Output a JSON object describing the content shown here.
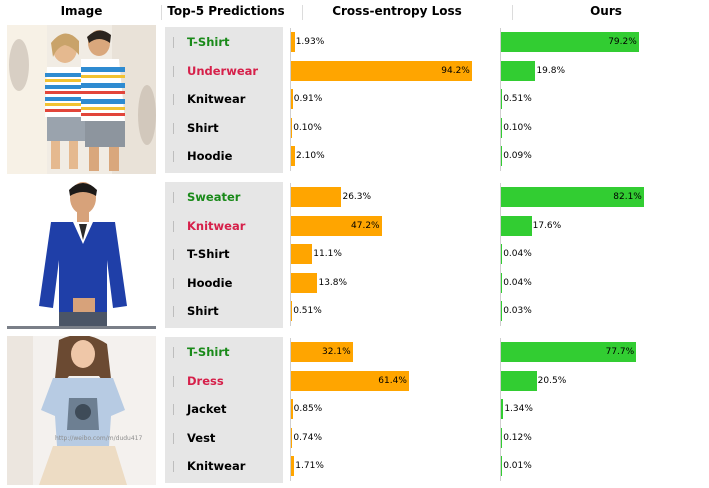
{
  "headers": {
    "image": "Image",
    "predictions": "Top-5 Predictions",
    "ce": "Cross-entropy Loss",
    "ours": "Ours"
  },
  "colors": {
    "ce_bar": "#ffa500",
    "ours_bar": "#32cd32",
    "correct_label": "#1a8a1a",
    "wrong_label": "#d6204a",
    "panel": "#e6e6e6"
  },
  "chart_data": {
    "type": "bar",
    "orientation": "horizontal",
    "xlim": [
      0,
      100
    ],
    "unit": "%",
    "groups": [
      {
        "photo_caption": "",
        "categories": [
          "T-Shirt",
          "Underwear",
          "Knitwear",
          "Shirt",
          "Hoodie"
        ],
        "status": [
          "correct",
          "wrong",
          "normal",
          "normal",
          "normal"
        ],
        "series": [
          {
            "name": "Cross-entropy Loss",
            "values": [
              1.93,
              94.2,
              0.91,
              0.1,
              2.1
            ],
            "labels": [
              "1.93%",
              "94.2%",
              "0.91%",
              "0.10%",
              "2.10%"
            ]
          },
          {
            "name": "Ours",
            "values": [
              79.2,
              19.8,
              0.51,
              0.1,
              0.09
            ],
            "labels": [
              "79.2%",
              "19.8%",
              "0.51%",
              "0.10%",
              "0.09%"
            ]
          }
        ]
      },
      {
        "photo_caption": "",
        "categories": [
          "Sweater",
          "Knitwear",
          "T-Shirt",
          "Hoodie",
          "Shirt"
        ],
        "status": [
          "correct",
          "wrong",
          "normal",
          "normal",
          "normal"
        ],
        "series": [
          {
            "name": "Cross-entropy Loss",
            "values": [
              26.3,
              47.2,
              11.1,
              13.8,
              0.51
            ],
            "labels": [
              "26.3%",
              "47.2%",
              "11.1%",
              "13.8%",
              "0.51%"
            ]
          },
          {
            "name": "Ours",
            "values": [
              82.1,
              17.6,
              0.04,
              0.04,
              0.03
            ],
            "labels": [
              "82.1%",
              "17.6%",
              "0.04%",
              "0.04%",
              "0.03%"
            ]
          }
        ]
      },
      {
        "photo_caption": "http://weibo.com/m/dudu417",
        "categories": [
          "T-Shirt",
          "Dress",
          "Jacket",
          "Vest",
          "Knitwear"
        ],
        "status": [
          "correct",
          "wrong",
          "normal",
          "normal",
          "normal"
        ],
        "series": [
          {
            "name": "Cross-entropy Loss",
            "values": [
              32.1,
              61.4,
              0.85,
              0.74,
              1.71
            ],
            "labels": [
              "32.1%",
              "61.4%",
              "0.85%",
              "0.74%",
              "1.71%"
            ]
          },
          {
            "name": "Ours",
            "values": [
              77.7,
              20.5,
              1.34,
              0.12,
              0.01
            ],
            "labels": [
              "77.7%",
              "20.5%",
              "1.34%",
              "0.12%",
              "0.01%"
            ]
          }
        ]
      }
    ]
  }
}
